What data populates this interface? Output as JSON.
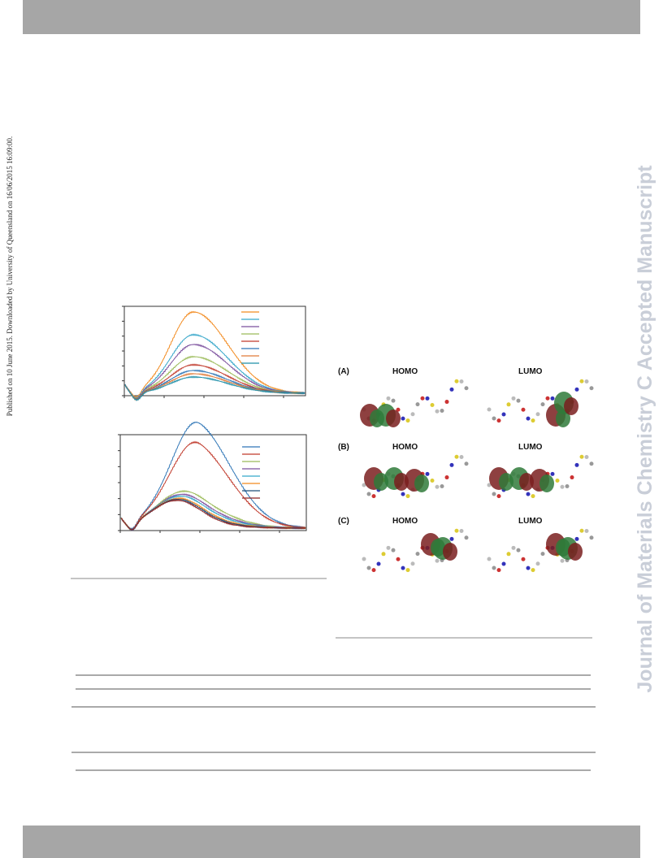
{
  "sidebar": {
    "published": "Published on 10 June 2015. Downloaded by University of Queensland on 16/06/2015 16:09:00.",
    "journal": "Journal of Materials Chemistry C Accepted Manuscript"
  },
  "figure": {
    "panels": [
      {
        "label": "(A)",
        "homo": "HOMO",
        "lumo": "LUMO"
      },
      {
        "label": "(B)",
        "homo": "HOMO",
        "lumo": "LUMO"
      },
      {
        "label": "(C)",
        "homo": "HOMO",
        "lumo": "LUMO"
      }
    ]
  }
}
